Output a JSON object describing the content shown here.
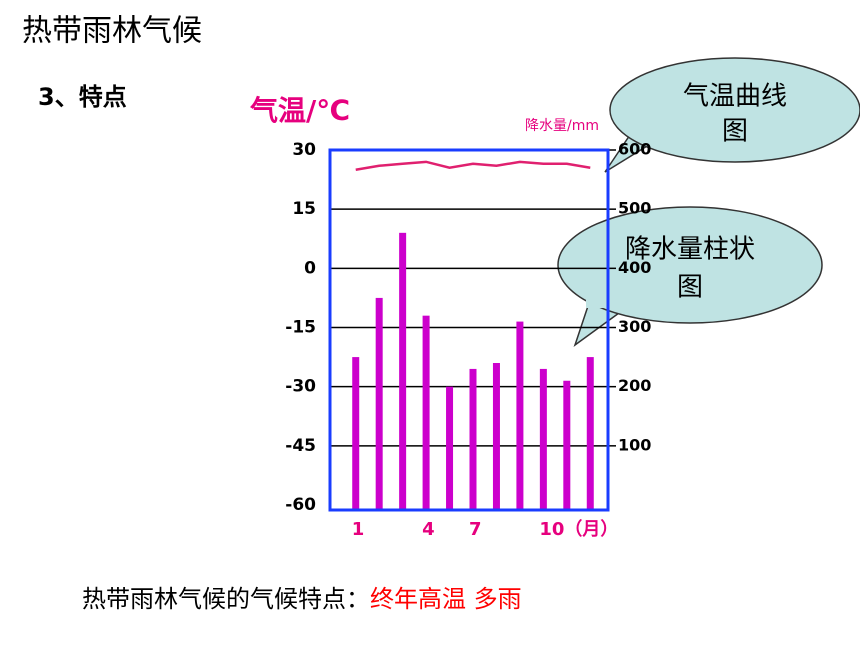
{
  "slide": {
    "title": "热带雨林气候",
    "subtitle": "3、特点",
    "callouts": [
      {
        "lines": [
          "气温曲线",
          "图"
        ]
      },
      {
        "lines": [
          "降水量柱状",
          "图"
        ]
      }
    ],
    "conclusion": {
      "label": "热带雨林气候的气候特点：",
      "highlight": "终年高温 多雨"
    }
  },
  "chart_data": {
    "type": "combo",
    "y_label": "气温/℃",
    "y2_label": "降水量/mm",
    "categories": [
      "1",
      null,
      null,
      "4",
      null,
      "7",
      null,
      null,
      "10（月）",
      null,
      null
    ],
    "series": [
      {
        "name": "降水量",
        "type": "bar",
        "axis": "y2",
        "color": "#cc00cc",
        "values": [
          250,
          350,
          460,
          320,
          200,
          230,
          240,
          310,
          230,
          210,
          250
        ]
      },
      {
        "name": "气温",
        "type": "line",
        "axis": "y",
        "color": "#e0206f",
        "values": [
          25,
          26,
          26.5,
          27,
          25.5,
          26.5,
          26,
          27,
          26.5,
          26.5,
          25.5
        ]
      }
    ],
    "ylim": [
      -60,
      30
    ],
    "yticks": [
      30,
      15,
      0,
      -15,
      -30,
      -45,
      -60
    ],
    "y2lim": [
      0,
      600
    ],
    "y2ticks": [
      600,
      500,
      400,
      300,
      200,
      100
    ],
    "frame_color": "#1a3cff",
    "grid": true
  }
}
